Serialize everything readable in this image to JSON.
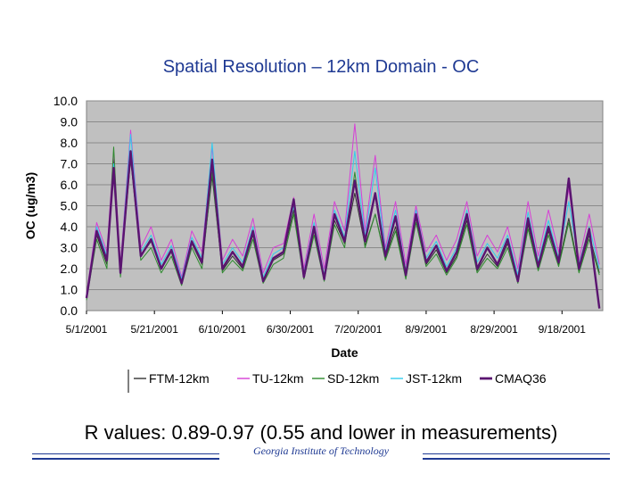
{
  "slide": {
    "title": "Spatial Resolution – 12km Domain - OC",
    "note": "R values: 0.89-0.97 (0.55 and lower in measurements)",
    "institution": "Georgia Institute of Technology"
  },
  "chart_data": {
    "type": "line",
    "xlabel": "Date",
    "ylabel": "OC (ug/m3)",
    "ylim": [
      0,
      10
    ],
    "yticks": [
      "0.0",
      "1.0",
      "2.0",
      "3.0",
      "4.0",
      "5.0",
      "6.0",
      "7.0",
      "8.0",
      "9.0",
      "10.0"
    ],
    "xlim": [
      "2001-05-01",
      "2001-09-30"
    ],
    "xticks": [
      "5/1/2001",
      "5/21/2001",
      "6/10/2001",
      "6/30/2001",
      "7/20/2001",
      "8/9/2001",
      "8/29/2001",
      "9/18/2001"
    ],
    "xtick_dates": [
      "2001-05-01",
      "2001-05-21",
      "2001-06-10",
      "2001-06-30",
      "2001-07-20",
      "2001-08-09",
      "2001-08-29",
      "2001-09-18"
    ],
    "grid": true,
    "legend": "bottom",
    "background": "#c0c0c0",
    "series": [
      {
        "name": "FTM-12km",
        "color": "#333333",
        "width": 1,
        "x": [
          "2001-05-01",
          "2001-05-04",
          "2001-05-07",
          "2001-05-09",
          "2001-05-11",
          "2001-05-14",
          "2001-05-17",
          "2001-05-20",
          "2001-05-23",
          "2001-05-26",
          "2001-05-29",
          "2001-06-01",
          "2001-06-04",
          "2001-06-07",
          "2001-06-10",
          "2001-06-13",
          "2001-06-16",
          "2001-06-19",
          "2001-06-22",
          "2001-06-25",
          "2001-06-28",
          "2001-07-01",
          "2001-07-04",
          "2001-07-07",
          "2001-07-10",
          "2001-07-13",
          "2001-07-16",
          "2001-07-19",
          "2001-07-22",
          "2001-07-25",
          "2001-07-28",
          "2001-07-31",
          "2001-08-03",
          "2001-08-06",
          "2001-08-09",
          "2001-08-12",
          "2001-08-15",
          "2001-08-18",
          "2001-08-21",
          "2001-08-24",
          "2001-08-27",
          "2001-08-30",
          "2001-09-02",
          "2001-09-05",
          "2001-09-08",
          "2001-09-11",
          "2001-09-14",
          "2001-09-17",
          "2001-09-20",
          "2001-09-23",
          "2001-09-26",
          "2001-09-29"
        ],
        "y": [
          0.6,
          3.6,
          2.2,
          7.2,
          1.8,
          7.2,
          2.6,
          3.3,
          2.0,
          2.8,
          1.3,
          3.2,
          2.2,
          6.4,
          1.9,
          2.6,
          2.0,
          3.6,
          1.4,
          2.4,
          2.7,
          4.8,
          1.6,
          3.8,
          1.5,
          4.3,
          3.2,
          5.6,
          3.1,
          4.6,
          2.5,
          4.0,
          1.6,
          4.4,
          2.2,
          2.9,
          1.8,
          2.6,
          4.3,
          1.9,
          2.7,
          2.1,
          3.2,
          1.4,
          4.1,
          2.0,
          3.8,
          2.2,
          4.4,
          1.9,
          3.6,
          1.8
        ]
      },
      {
        "name": "TU-12km",
        "color": "#d63fd6",
        "width": 1,
        "x": [
          "2001-05-01",
          "2001-05-04",
          "2001-05-07",
          "2001-05-09",
          "2001-05-11",
          "2001-05-14",
          "2001-05-17",
          "2001-05-20",
          "2001-05-23",
          "2001-05-26",
          "2001-05-29",
          "2001-06-01",
          "2001-06-04",
          "2001-06-07",
          "2001-06-10",
          "2001-06-13",
          "2001-06-16",
          "2001-06-19",
          "2001-06-22",
          "2001-06-25",
          "2001-06-28",
          "2001-07-01",
          "2001-07-04",
          "2001-07-07",
          "2001-07-10",
          "2001-07-13",
          "2001-07-16",
          "2001-07-19",
          "2001-07-22",
          "2001-07-25",
          "2001-07-28",
          "2001-07-31",
          "2001-08-03",
          "2001-08-06",
          "2001-08-09",
          "2001-08-12",
          "2001-08-15",
          "2001-08-18",
          "2001-08-21",
          "2001-08-24",
          "2001-08-27",
          "2001-08-30",
          "2001-09-02",
          "2001-09-05",
          "2001-09-08",
          "2001-09-11",
          "2001-09-14",
          "2001-09-17",
          "2001-09-20",
          "2001-09-23",
          "2001-09-26",
          "2001-09-29"
        ],
        "y": [
          0.8,
          4.2,
          2.8,
          7.6,
          2.2,
          8.6,
          3.0,
          4.0,
          2.4,
          3.4,
          1.6,
          3.8,
          2.8,
          7.8,
          2.4,
          3.4,
          2.6,
          4.4,
          1.8,
          3.0,
          3.2,
          5.4,
          2.0,
          4.6,
          2.0,
          5.2,
          3.8,
          8.9,
          3.8,
          7.4,
          3.0,
          5.2,
          2.2,
          5.0,
          2.8,
          3.6,
          2.4,
          3.4,
          5.2,
          2.6,
          3.6,
          2.8,
          4.0,
          2.0,
          5.2,
          2.6,
          4.8,
          2.8,
          5.8,
          2.4,
          4.6,
          2.2
        ]
      },
      {
        "name": "SD-12km",
        "color": "#2e8b2e",
        "width": 1,
        "x": [
          "2001-05-01",
          "2001-05-04",
          "2001-05-07",
          "2001-05-09",
          "2001-05-11",
          "2001-05-14",
          "2001-05-17",
          "2001-05-20",
          "2001-05-23",
          "2001-05-26",
          "2001-05-29",
          "2001-06-01",
          "2001-06-04",
          "2001-06-07",
          "2001-06-10",
          "2001-06-13",
          "2001-06-16",
          "2001-06-19",
          "2001-06-22",
          "2001-06-25",
          "2001-06-28",
          "2001-07-01",
          "2001-07-04",
          "2001-07-07",
          "2001-07-10",
          "2001-07-13",
          "2001-07-16",
          "2001-07-19",
          "2001-07-22",
          "2001-07-25",
          "2001-07-28",
          "2001-07-31",
          "2001-08-03",
          "2001-08-06",
          "2001-08-09",
          "2001-08-12",
          "2001-08-15",
          "2001-08-18",
          "2001-08-21",
          "2001-08-24",
          "2001-08-27",
          "2001-08-30",
          "2001-09-02",
          "2001-09-05",
          "2001-09-08",
          "2001-09-11",
          "2001-09-14",
          "2001-09-17",
          "2001-09-20",
          "2001-09-23",
          "2001-09-26",
          "2001-09-29"
        ],
        "y": [
          0.5,
          3.4,
          2.0,
          7.8,
          1.6,
          7.4,
          2.4,
          3.0,
          1.8,
          2.6,
          1.2,
          3.0,
          2.0,
          6.6,
          1.8,
          2.4,
          1.9,
          3.4,
          1.3,
          2.2,
          2.5,
          4.6,
          1.5,
          3.6,
          1.4,
          4.1,
          3.0,
          6.6,
          3.0,
          4.6,
          2.4,
          3.8,
          1.5,
          4.2,
          2.1,
          2.7,
          1.7,
          2.5,
          4.1,
          1.8,
          2.5,
          2.0,
          3.0,
          1.3,
          3.9,
          1.9,
          3.6,
          2.1,
          4.2,
          1.8,
          3.4,
          1.7
        ]
      },
      {
        "name": "JST-12km",
        "color": "#33ccee",
        "width": 1,
        "x": [
          "2001-05-01",
          "2001-05-04",
          "2001-05-07",
          "2001-05-09",
          "2001-05-11",
          "2001-05-14",
          "2001-05-17",
          "2001-05-20",
          "2001-05-23",
          "2001-05-26",
          "2001-05-29",
          "2001-06-01",
          "2001-06-04",
          "2001-06-07",
          "2001-06-10",
          "2001-06-13",
          "2001-06-16",
          "2001-06-19",
          "2001-06-22",
          "2001-06-25",
          "2001-06-28",
          "2001-07-01",
          "2001-07-04",
          "2001-07-07",
          "2001-07-10",
          "2001-07-13",
          "2001-07-16",
          "2001-07-19",
          "2001-07-22",
          "2001-07-25",
          "2001-07-28",
          "2001-07-31",
          "2001-08-03",
          "2001-08-06",
          "2001-08-09",
          "2001-08-12",
          "2001-08-15",
          "2001-08-18",
          "2001-08-21",
          "2001-08-24",
          "2001-08-27",
          "2001-08-30",
          "2001-09-02",
          "2001-09-05",
          "2001-09-08",
          "2001-09-11",
          "2001-09-14",
          "2001-09-17",
          "2001-09-20",
          "2001-09-23",
          "2001-09-26",
          "2001-09-29"
        ],
        "y": [
          0.7,
          4.0,
          2.6,
          7.0,
          2.0,
          8.4,
          2.8,
          3.6,
          2.2,
          3.1,
          1.5,
          3.5,
          2.5,
          8.0,
          2.2,
          3.0,
          2.3,
          4.0,
          1.6,
          2.7,
          3.0,
          5.0,
          1.8,
          4.2,
          1.7,
          4.8,
          3.5,
          7.6,
          3.5,
          6.8,
          2.8,
          4.8,
          1.9,
          4.8,
          2.5,
          3.3,
          2.1,
          3.0,
          4.8,
          2.3,
          3.2,
          2.5,
          3.6,
          1.7,
          4.7,
          2.3,
          4.3,
          2.5,
          5.2,
          2.2,
          4.0,
          2.0
        ]
      },
      {
        "name": "CMAQ36",
        "color": "#5a1470",
        "width": 2.4,
        "x": [
          "2001-05-01",
          "2001-05-04",
          "2001-05-07",
          "2001-05-09",
          "2001-05-11",
          "2001-05-14",
          "2001-05-17",
          "2001-05-20",
          "2001-05-23",
          "2001-05-26",
          "2001-05-29",
          "2001-06-01",
          "2001-06-04",
          "2001-06-07",
          "2001-06-10",
          "2001-06-13",
          "2001-06-16",
          "2001-06-19",
          "2001-06-22",
          "2001-06-25",
          "2001-06-28",
          "2001-07-01",
          "2001-07-04",
          "2001-07-07",
          "2001-07-10",
          "2001-07-13",
          "2001-07-16",
          "2001-07-19",
          "2001-07-22",
          "2001-07-25",
          "2001-07-28",
          "2001-07-31",
          "2001-08-03",
          "2001-08-06",
          "2001-08-09",
          "2001-08-12",
          "2001-08-15",
          "2001-08-18",
          "2001-08-21",
          "2001-08-24",
          "2001-08-27",
          "2001-08-30",
          "2001-09-02",
          "2001-09-05",
          "2001-09-08",
          "2001-09-11",
          "2001-09-14",
          "2001-09-17",
          "2001-09-20",
          "2001-09-23",
          "2001-09-26",
          "2001-09-29"
        ],
        "y": [
          0.6,
          3.8,
          2.4,
          6.8,
          1.8,
          7.6,
          2.6,
          3.4,
          2.0,
          2.9,
          1.3,
          3.3,
          2.3,
          7.2,
          2.0,
          2.8,
          2.1,
          3.8,
          1.4,
          2.5,
          2.8,
          5.3,
          1.6,
          4.0,
          1.5,
          4.6,
          3.3,
          6.2,
          3.3,
          5.6,
          2.6,
          4.5,
          1.7,
          4.6,
          2.3,
          3.1,
          1.9,
          2.8,
          4.6,
          2.0,
          3.0,
          2.2,
          3.4,
          1.4,
          4.4,
          2.1,
          4.0,
          2.3,
          6.3,
          2.0,
          3.9,
          0.1
        ]
      }
    ]
  }
}
